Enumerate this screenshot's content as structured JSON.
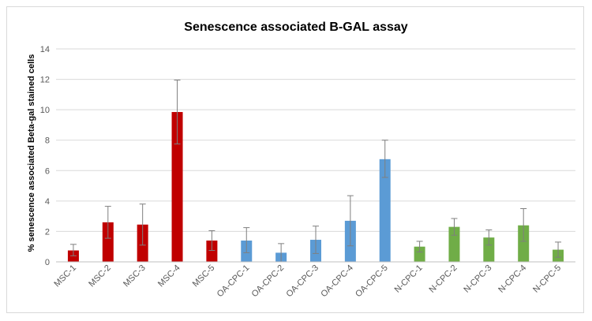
{
  "chart_data": {
    "type": "bar",
    "title": "Senescence associated B-GAL assay",
    "xlabel": "",
    "ylabel": "% senescence  associated Beta-gal stained cells",
    "ylim": [
      0,
      14
    ],
    "yticks": [
      0,
      2,
      4,
      6,
      8,
      10,
      12,
      14
    ],
    "grid": true,
    "legend": "none",
    "categories": [
      "MSC-1",
      "MSC-2",
      "MSC-3",
      "MSC-4",
      "MSC-5",
      "OA-CPC-1",
      "OA-CPC-2",
      "OA-CPC-3",
      "OA-CPC-4",
      "OA-CPC-5",
      "N-CPC-1",
      "N-CPC-2",
      "N-CPC-3",
      "N-CPC-4",
      "N-CPC-5"
    ],
    "values": [
      0.75,
      2.6,
      2.45,
      9.85,
      1.4,
      1.4,
      0.6,
      1.45,
      2.7,
      6.75,
      1.0,
      2.3,
      1.6,
      2.4,
      0.8
    ],
    "error_high": [
      1.15,
      3.65,
      3.8,
      11.95,
      2.05,
      2.25,
      1.2,
      2.35,
      4.35,
      8.0,
      1.35,
      2.85,
      2.1,
      3.5,
      1.3
    ],
    "error_low": [
      0.4,
      1.55,
      1.1,
      7.75,
      0.75,
      0.6,
      0.0,
      0.55,
      1.05,
      5.55,
      0.65,
      1.75,
      1.1,
      1.35,
      0.3
    ],
    "bar_colors": [
      "#c00000",
      "#c00000",
      "#c00000",
      "#c00000",
      "#c00000",
      "#5b9bd5",
      "#5b9bd5",
      "#5b9bd5",
      "#5b9bd5",
      "#5b9bd5",
      "#70ad47",
      "#70ad47",
      "#70ad47",
      "#70ad47",
      "#70ad47"
    ]
  }
}
